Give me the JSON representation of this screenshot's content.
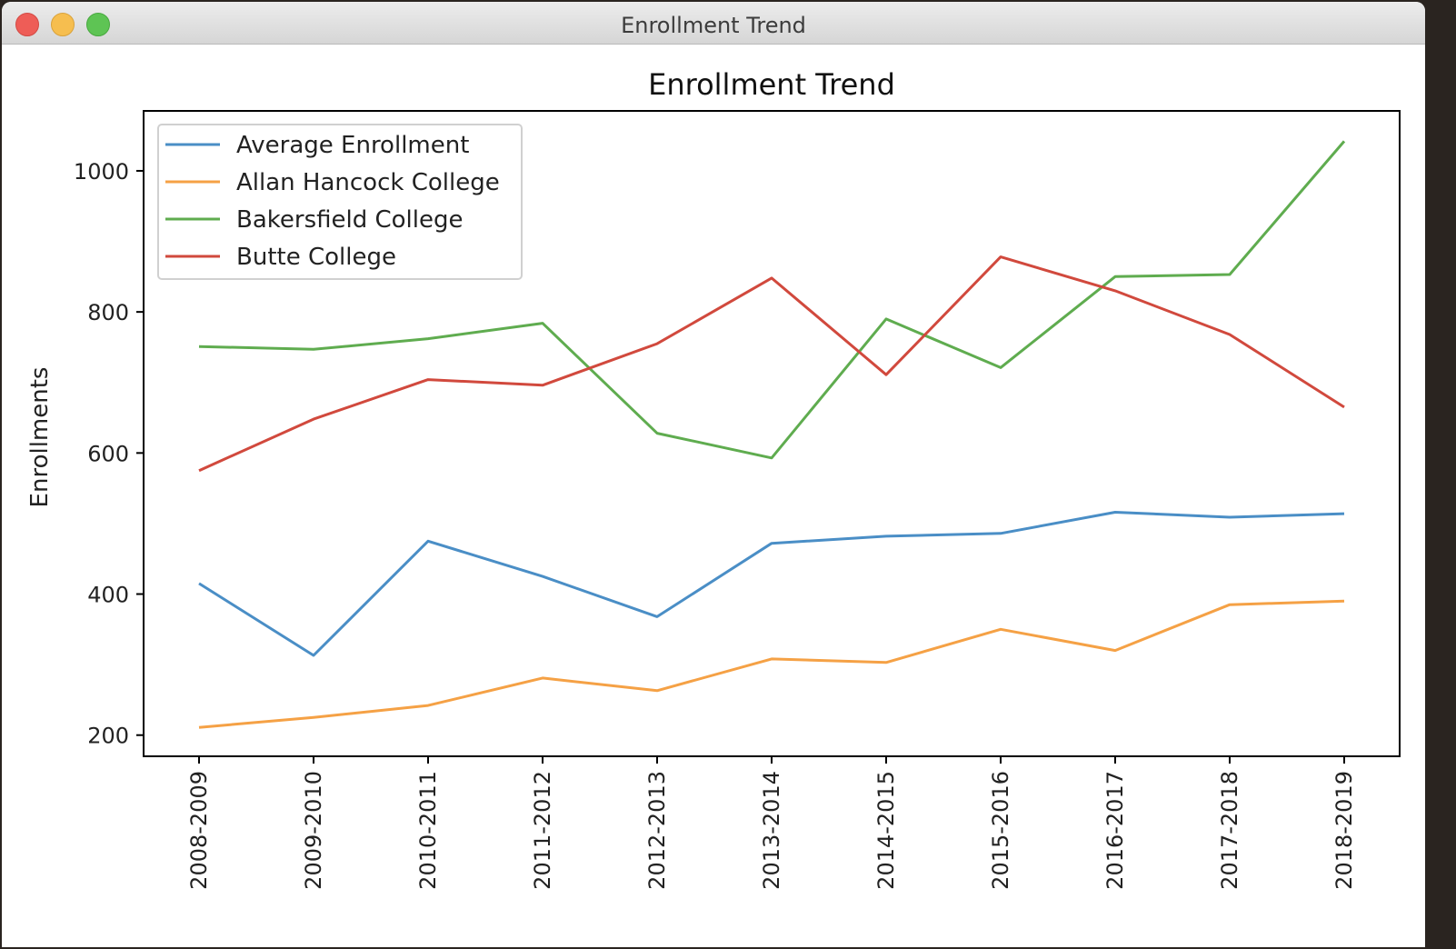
{
  "window": {
    "title": "Enrollment Trend"
  },
  "chart_data": {
    "type": "line",
    "title": "Enrollment Trend",
    "xlabel": "",
    "ylabel": "Enrollments",
    "categories": [
      "2008-2009",
      "2009-2010",
      "2010-2011",
      "2011-2012",
      "2012-2013",
      "2013-2014",
      "2014-2015",
      "2015-2016",
      "2016-2017",
      "2017-2018",
      "2018-2019"
    ],
    "yticks": [
      200,
      400,
      600,
      800,
      1000
    ],
    "ylim": [
      170,
      1085
    ],
    "grid": false,
    "legend_position": "top-left",
    "series": [
      {
        "name": "Average Enrollment",
        "color": "#4a8ec6",
        "values": [
          415,
          313,
          475,
          425,
          368,
          472,
          482,
          486,
          516,
          509,
          514
        ]
      },
      {
        "name": "Allan Hancock College",
        "color": "#f5a145",
        "values": [
          211,
          225,
          242,
          281,
          263,
          308,
          303,
          350,
          320,
          385,
          390
        ]
      },
      {
        "name": "Bakersfield College",
        "color": "#5fac4f",
        "values": [
          751,
          747,
          762,
          784,
          628,
          593,
          790,
          721,
          850,
          853,
          1042
        ]
      },
      {
        "name": "Butte College",
        "color": "#d1493d",
        "values": [
          575,
          648,
          704,
          696,
          755,
          848,
          711,
          878,
          830,
          768,
          665
        ]
      }
    ]
  }
}
